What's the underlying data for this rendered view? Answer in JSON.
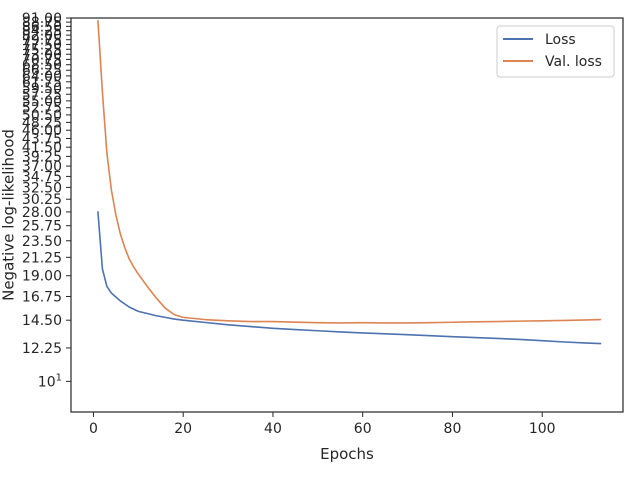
{
  "chart_data": {
    "type": "line",
    "title": "",
    "xlabel": "Epochs",
    "ylabel": "Negative log-likelihood",
    "xlim": [
      -5,
      118
    ],
    "ylim": [
      8.3,
      91.0
    ],
    "yscale": "log",
    "x_ticks": [
      0,
      20,
      40,
      60,
      80,
      100
    ],
    "y_ticks": [
      {
        "value": 10,
        "label": "10",
        "superscript": "1"
      },
      {
        "value": 12.25,
        "label": "12.25"
      },
      {
        "value": 14.5,
        "label": "14.50"
      },
      {
        "value": 16.75,
        "label": "16.75"
      },
      {
        "value": 19.0,
        "label": "19.00"
      },
      {
        "value": 21.25,
        "label": "21.25"
      },
      {
        "value": 23.5,
        "label": "23.50"
      },
      {
        "value": 25.75,
        "label": "25.75"
      },
      {
        "value": 28.0,
        "label": "28.00"
      },
      {
        "value": 30.25,
        "label": "30.25"
      },
      {
        "value": 32.5,
        "label": "32.50"
      },
      {
        "value": 34.75,
        "label": "34.75"
      },
      {
        "value": 37.0,
        "label": "37.00"
      },
      {
        "value": 39.25,
        "label": "39.25"
      },
      {
        "value": 41.5,
        "label": "41.50"
      },
      {
        "value": 43.75,
        "label": "43.75"
      },
      {
        "value": 46.0,
        "label": "46.00"
      },
      {
        "value": 48.25,
        "label": "48.25"
      },
      {
        "value": 50.5,
        "label": "50.50"
      },
      {
        "value": 52.75,
        "label": "52.75"
      },
      {
        "value": 55.0,
        "label": "55.00"
      },
      {
        "value": 57.25,
        "label": "57.25"
      },
      {
        "value": 59.5,
        "label": "59.50"
      },
      {
        "value": 61.75,
        "label": "61.75"
      },
      {
        "value": 64.0,
        "label": "64.00"
      },
      {
        "value": 66.25,
        "label": "66.25"
      },
      {
        "value": 68.5,
        "label": "68.50"
      },
      {
        "value": 70.75,
        "label": "70.75"
      },
      {
        "value": 73.0,
        "label": "73.00"
      },
      {
        "value": 75.25,
        "label": "75.25"
      },
      {
        "value": 77.5,
        "label": "77.50"
      },
      {
        "value": 79.75,
        "label": "79.75"
      },
      {
        "value": 82.0,
        "label": "82.00"
      },
      {
        "value": 84.25,
        "label": "84.25"
      },
      {
        "value": 86.5,
        "label": "86.50"
      },
      {
        "value": 88.75,
        "label": "88.75"
      },
      {
        "value": 91.0,
        "label": "91.00"
      }
    ],
    "grid": false,
    "legend_position": "top-right",
    "series": [
      {
        "name": "Loss",
        "color": "#4c72b0",
        "points": [
          [
            1,
            28.0
          ],
          [
            2,
            19.8
          ],
          [
            3,
            17.8
          ],
          [
            4,
            17.1
          ],
          [
            5,
            16.7
          ],
          [
            6,
            16.3
          ],
          [
            7,
            16.0
          ],
          [
            8,
            15.7
          ],
          [
            9,
            15.5
          ],
          [
            10,
            15.3
          ],
          [
            12,
            15.1
          ],
          [
            14,
            14.9
          ],
          [
            16,
            14.75
          ],
          [
            18,
            14.6
          ],
          [
            20,
            14.5
          ],
          [
            25,
            14.3
          ],
          [
            30,
            14.1
          ],
          [
            35,
            13.95
          ],
          [
            40,
            13.8
          ],
          [
            45,
            13.7
          ],
          [
            50,
            13.6
          ],
          [
            55,
            13.5
          ],
          [
            60,
            13.42
          ],
          [
            65,
            13.35
          ],
          [
            70,
            13.28
          ],
          [
            75,
            13.2
          ],
          [
            80,
            13.12
          ],
          [
            85,
            13.05
          ],
          [
            90,
            12.98
          ],
          [
            95,
            12.9
          ],
          [
            100,
            12.8
          ],
          [
            105,
            12.7
          ],
          [
            110,
            12.62
          ],
          [
            113,
            12.58
          ]
        ]
      },
      {
        "name": "Val. loss",
        "color": "#dd8452",
        "points": [
          [
            1,
            89.5
          ],
          [
            2,
            58.0
          ],
          [
            3,
            40.0
          ],
          [
            4,
            32.0
          ],
          [
            5,
            27.5
          ],
          [
            6,
            24.5
          ],
          [
            7,
            22.5
          ],
          [
            8,
            21.0
          ],
          [
            9,
            20.0
          ],
          [
            10,
            19.2
          ],
          [
            12,
            17.8
          ],
          [
            14,
            16.6
          ],
          [
            16,
            15.6
          ],
          [
            18,
            15.0
          ],
          [
            20,
            14.75
          ],
          [
            25,
            14.55
          ],
          [
            30,
            14.45
          ],
          [
            35,
            14.38
          ],
          [
            40,
            14.38
          ],
          [
            45,
            14.33
          ],
          [
            50,
            14.28
          ],
          [
            55,
            14.26
          ],
          [
            60,
            14.28
          ],
          [
            65,
            14.26
          ],
          [
            70,
            14.26
          ],
          [
            75,
            14.28
          ],
          [
            80,
            14.32
          ],
          [
            85,
            14.36
          ],
          [
            90,
            14.38
          ],
          [
            95,
            14.42
          ],
          [
            100,
            14.45
          ],
          [
            105,
            14.48
          ],
          [
            110,
            14.52
          ],
          [
            113,
            14.56
          ]
        ]
      }
    ]
  }
}
